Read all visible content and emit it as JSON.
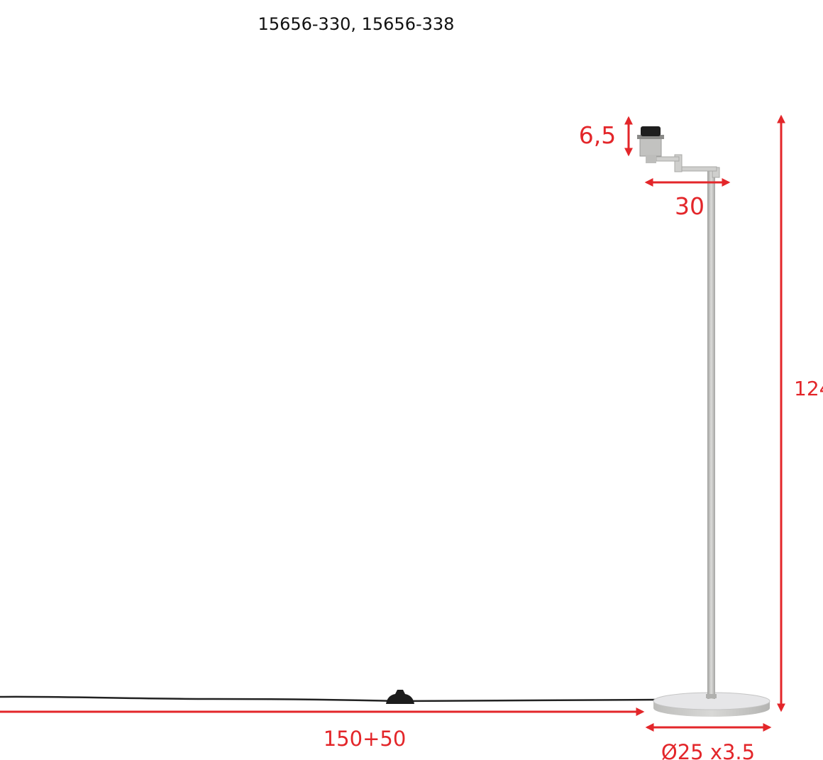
{
  "title": "15656-330, 15656-338",
  "colors": {
    "dimension": "#e3262a",
    "metal": "#c9c9c7",
    "cable": "#222222"
  },
  "dimensions": {
    "socket_height": "6,5",
    "arm_length": "30",
    "total_height": "124",
    "cable_length": "150+50",
    "base": "Ø25 x3.5"
  }
}
